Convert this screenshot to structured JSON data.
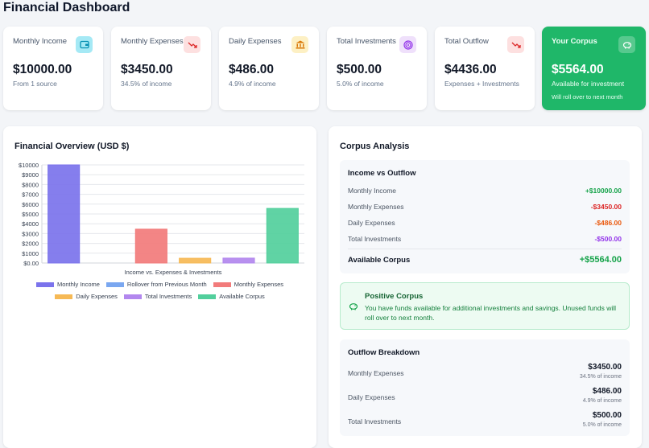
{
  "page": {
    "title": "Financial Dashboard"
  },
  "cards": [
    {
      "title": "Monthly Income",
      "value": "$10000.00",
      "sub": "From 1 source",
      "icon": "wallet-icon",
      "icon_bg": "#a5e9f5",
      "icon_color": "#0891b2"
    },
    {
      "title": "Monthly Expenses",
      "value": "$3450.00",
      "sub": "34.5% of income",
      "icon": "trending-down-icon",
      "icon_bg": "#fde0e0",
      "icon_color": "#dc2626"
    },
    {
      "title": "Daily Expenses",
      "value": "$486.00",
      "sub": "4.9% of income",
      "icon": "bank-icon",
      "icon_bg": "#fdf0c4",
      "icon_color": "#d97706"
    },
    {
      "title": "Total Investments",
      "value": "$500.00",
      "sub": "5.0% of income",
      "icon": "target-icon",
      "icon_bg": "#efe0fb",
      "icon_color": "#9333ea"
    },
    {
      "title": "Total Outflow",
      "value": "$4436.00",
      "sub": "Expenses + Investments",
      "icon": "trending-down-icon",
      "icon_bg": "#fde0e0",
      "icon_color": "#dc2626"
    },
    {
      "title": "Your Corpus",
      "value": "$5564.00",
      "sub": "Available for investment",
      "sub2": "Will roll over to next month",
      "icon": "piggy-bank-icon"
    }
  ],
  "overview": {
    "title": "Financial Overview (USD $)"
  },
  "chart_data": {
    "type": "bar",
    "title": "",
    "xlabel": "Income vs. Expenses & Investments",
    "ylabel": "",
    "categories": [
      "Monthly Income",
      "Rollover from Previous Month",
      "Monthly Expenses",
      "Daily Expenses",
      "Total Investments",
      "Available Corpus"
    ],
    "values": [
      10000,
      0,
      3450,
      486,
      500,
      5564
    ],
    "colors": [
      "#7b73ec",
      "#7aa7f0",
      "#f27b7b",
      "#f6b955",
      "#b287ee",
      "#52cf9c"
    ],
    "ylim": [
      0,
      10000
    ],
    "yticks": [
      0,
      1000,
      2000,
      3000,
      4000,
      5000,
      6000,
      7000,
      8000,
      9000,
      10000
    ],
    "ytick_labels": [
      "$0.00",
      "$1000",
      "$2000",
      "$3000",
      "$4000",
      "$5000",
      "$6000",
      "$7000",
      "$8000",
      "$9000",
      "$10000"
    ],
    "grid": true,
    "legend": "bottom"
  },
  "corpus": {
    "title": "Corpus Analysis",
    "income_vs_outflow": {
      "title": "Income vs Outflow",
      "rows": [
        {
          "label": "Monthly Income",
          "value": "+$10000.00",
          "color": "#16a34a"
        },
        {
          "label": "Monthly Expenses",
          "value": "-$3450.00",
          "color": "#dc2626"
        },
        {
          "label": "Daily Expenses",
          "value": "-$486.00",
          "color": "#ea580c"
        },
        {
          "label": "Total Investments",
          "value": "-$500.00",
          "color": "#9333ea"
        }
      ],
      "total": {
        "label": "Available Corpus",
        "value": "+$5564.00",
        "color": "#16a34a"
      }
    },
    "notice": {
      "title": "Positive Corpus",
      "text": "You have funds available for additional investments and savings. Unused funds will roll over to next month.",
      "icon": "piggy-bank-icon"
    },
    "breakdown": {
      "title": "Outflow Breakdown",
      "rows": [
        {
          "label": "Monthly Expenses",
          "amount": "$3450.00",
          "pct": "34.5% of income"
        },
        {
          "label": "Daily Expenses",
          "amount": "$486.00",
          "pct": "4.9% of income"
        },
        {
          "label": "Total Investments",
          "amount": "$500.00",
          "pct": "5.0% of income"
        }
      ]
    }
  }
}
